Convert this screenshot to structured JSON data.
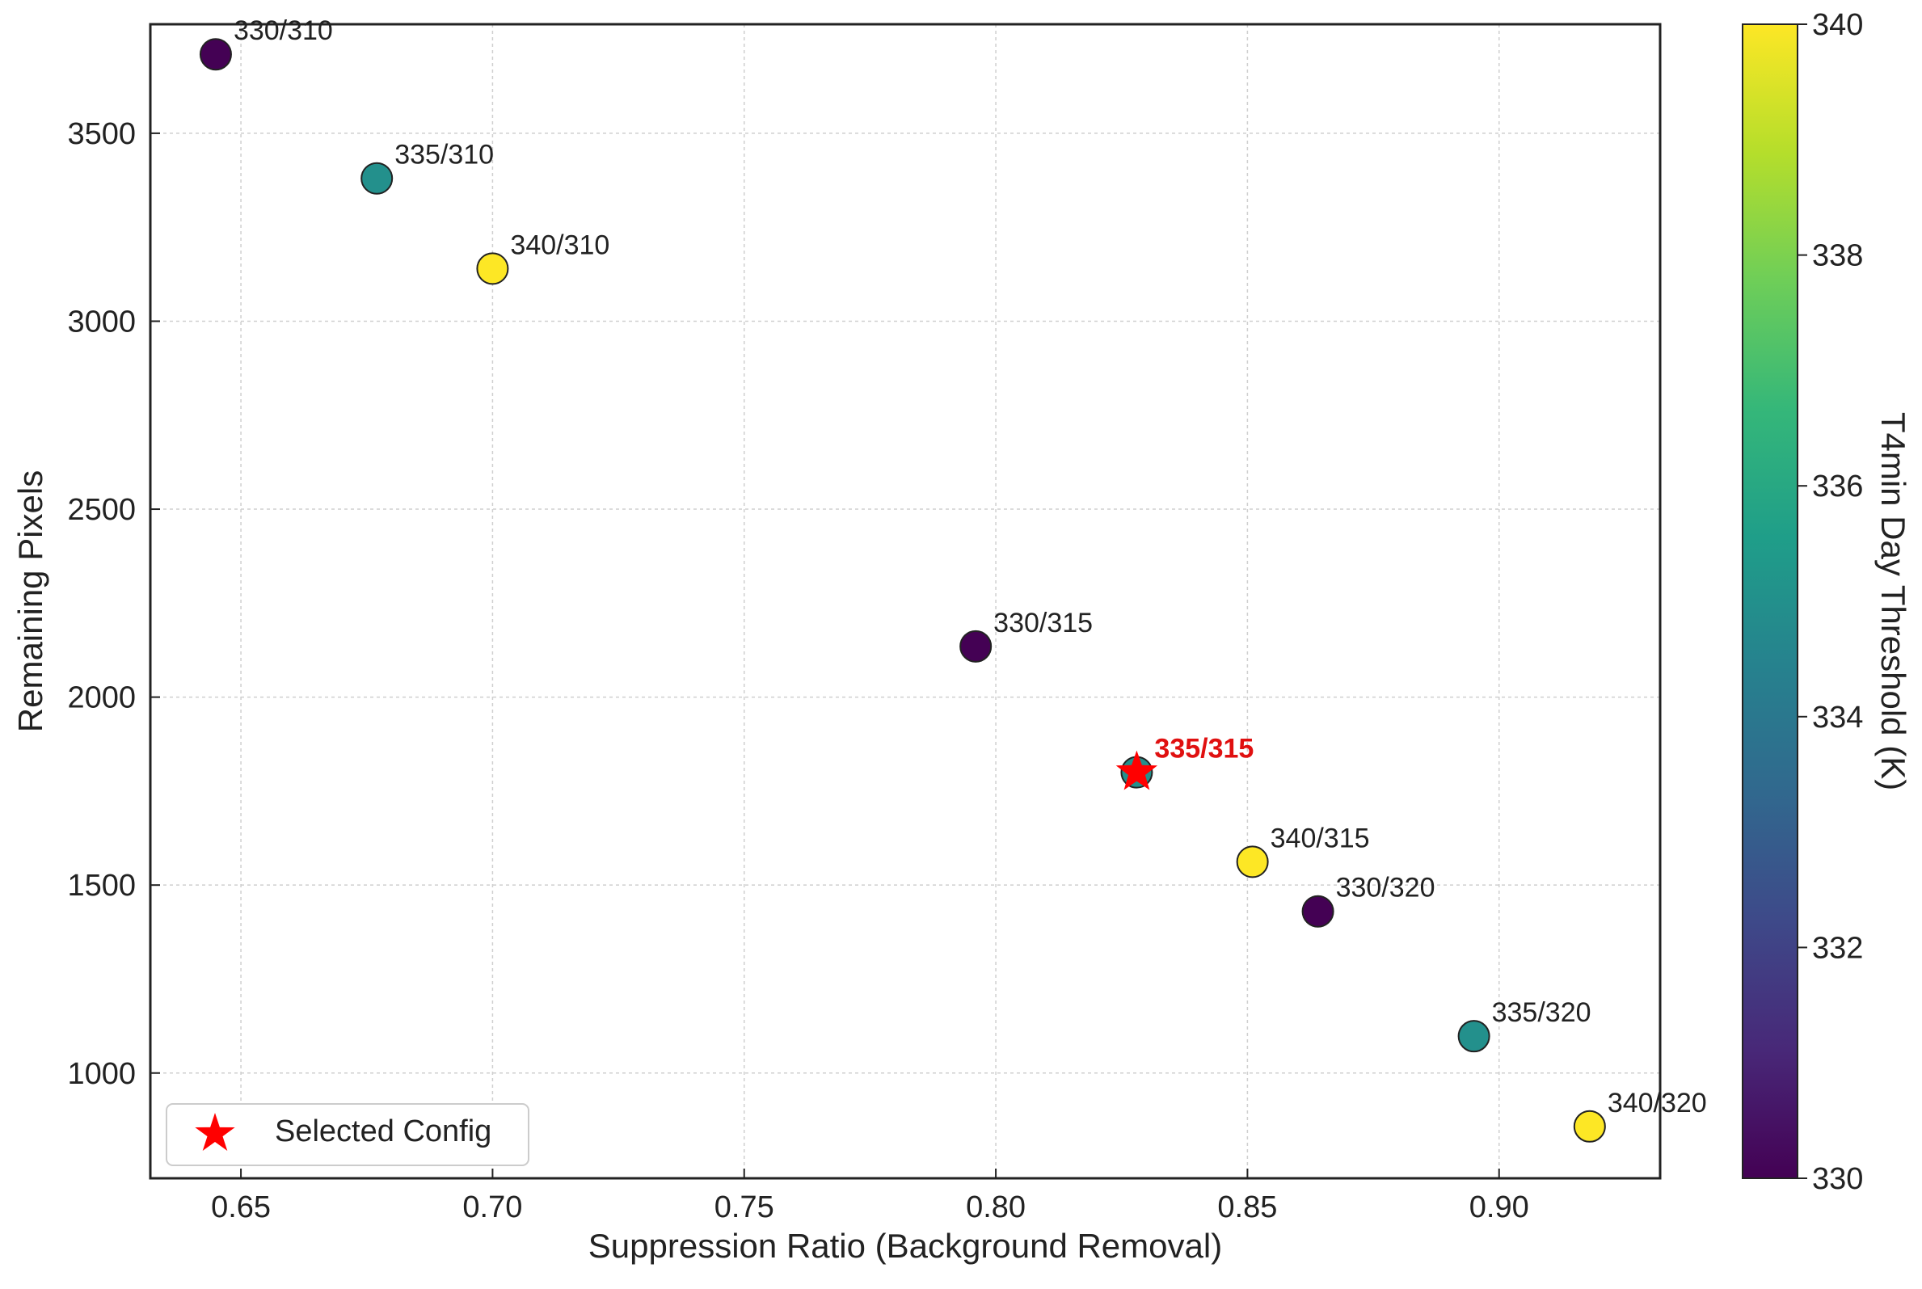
{
  "chart_data": {
    "type": "scatter",
    "title": "",
    "xlabel": "Suppression Ratio (Background Removal)",
    "ylabel": "Remaining Pixels",
    "xlim": [
      0.632,
      0.932
    ],
    "ylim": [
      720,
      3790
    ],
    "xticks": [
      0.65,
      0.7,
      0.75,
      0.8,
      0.85,
      0.9
    ],
    "xtick_labels": [
      "0.65",
      "0.70",
      "0.75",
      "0.80",
      "0.85",
      "0.90"
    ],
    "yticks": [
      1000,
      1500,
      2000,
      2500,
      3000,
      3500
    ],
    "ytick_labels": [
      "1000",
      "1500",
      "2000",
      "2500",
      "3000",
      "3500"
    ],
    "grid": true,
    "points": [
      {
        "label": "330/310",
        "x": 0.645,
        "y": 3710,
        "day": 330
      },
      {
        "label": "335/310",
        "x": 0.677,
        "y": 3380,
        "day": 335
      },
      {
        "label": "340/310",
        "x": 0.7,
        "y": 3140,
        "day": 340
      },
      {
        "label": "330/315",
        "x": 0.796,
        "y": 2135,
        "day": 330
      },
      {
        "label": "335/315",
        "x": 0.828,
        "y": 1800,
        "day": 335,
        "selected": true
      },
      {
        "label": "340/315",
        "x": 0.851,
        "y": 1562,
        "day": 340
      },
      {
        "label": "330/320",
        "x": 0.864,
        "y": 1430,
        "day": 330
      },
      {
        "label": "335/320",
        "x": 0.895,
        "y": 1098,
        "day": 335
      },
      {
        "label": "340/320",
        "x": 0.918,
        "y": 858,
        "day": 340
      }
    ],
    "selected_color": "#ff0000",
    "selected_label_color": "#e01010",
    "legend": {
      "entries": [
        {
          "label": "Selected Config",
          "marker": "star",
          "color": "#ff0000"
        }
      ],
      "position": "lower-left"
    },
    "colorbar": {
      "label": "T4min Day Threshold (K)",
      "range": [
        330,
        340
      ],
      "ticks": [
        330,
        332,
        334,
        336,
        338,
        340
      ],
      "tick_labels": [
        "330",
        "332",
        "334",
        "336",
        "338",
        "340"
      ],
      "colormap": "viridis",
      "stops": [
        "#440154",
        "#482878",
        "#3e4989",
        "#31688e",
        "#26828e",
        "#1f9e89",
        "#35b779",
        "#6ece58",
        "#b5de2b",
        "#fde725"
      ]
    }
  }
}
